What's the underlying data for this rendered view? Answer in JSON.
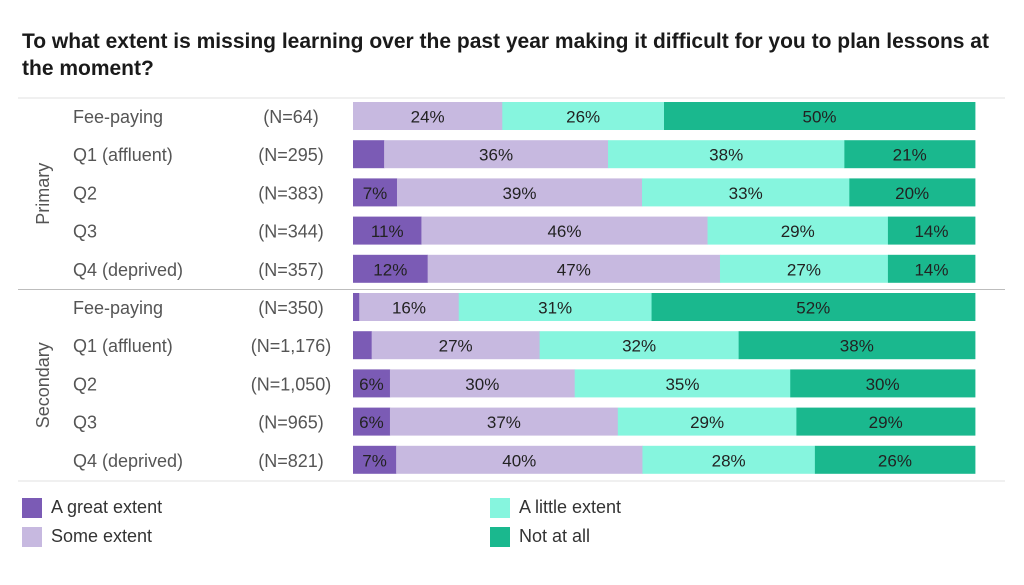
{
  "title": "To what extent is missing learning over the past year making it difficult for you to plan lessons at the moment?",
  "chart_data": {
    "type": "bar",
    "orientation": "horizontal",
    "stacked": true,
    "percent_scale": [
      0,
      100
    ],
    "title": "To what extent is missing learning over the past year making it difficult for you to plan lessons at the moment?",
    "series": [
      {
        "name": "A great extent",
        "color": "#7b5bb5",
        "text_color": "#ffffff"
      },
      {
        "name": "Some extent",
        "color": "#c7b9e0",
        "text_color": "#222222"
      },
      {
        "name": "A little extent",
        "color": "#86f5de",
        "text_color": "#222222"
      },
      {
        "name": "Not at all",
        "color": "#1ab88e",
        "text_color": "#222222"
      }
    ],
    "groups": [
      {
        "name": "Primary",
        "rows": [
          {
            "label": "Fee-paying",
            "n": "(N=64)",
            "values": [
              0,
              24,
              26,
              50
            ],
            "labels": [
              "",
              "24%",
              "26%",
              "50%"
            ]
          },
          {
            "label": "Q1 (affluent)",
            "n": "(N=295)",
            "values": [
              5,
              36,
              38,
              21
            ],
            "labels": [
              "",
              "36%",
              "38%",
              "21%"
            ]
          },
          {
            "label": "Q2",
            "n": "(N=383)",
            "values": [
              7,
              39,
              33,
              20
            ],
            "labels": [
              "7%",
              "39%",
              "33%",
              "20%"
            ]
          },
          {
            "label": "Q3",
            "n": "(N=344)",
            "values": [
              11,
              46,
              29,
              14
            ],
            "labels": [
              "11%",
              "46%",
              "29%",
              "14%"
            ]
          },
          {
            "label": "Q4 (deprived)",
            "n": "(N=357)",
            "values": [
              12,
              47,
              27,
              14
            ],
            "labels": [
              "12%",
              "47%",
              "27%",
              "14%"
            ]
          }
        ]
      },
      {
        "name": "Secondary",
        "rows": [
          {
            "label": "Fee-paying",
            "n": "(N=350)",
            "values": [
              1,
              16,
              31,
              52
            ],
            "labels": [
              "",
              "16%",
              "31%",
              "52%"
            ]
          },
          {
            "label": "Q1 (affluent)",
            "n": "(N=1,176)",
            "values": [
              3,
              27,
              32,
              38
            ],
            "labels": [
              "",
              "27%",
              "32%",
              "38%"
            ]
          },
          {
            "label": "Q2",
            "n": "(N=1,050)",
            "values": [
              6,
              30,
              35,
              30
            ],
            "labels": [
              "6%",
              "30%",
              "35%",
              "30%"
            ]
          },
          {
            "label": "Q3",
            "n": "(N=965)",
            "values": [
              6,
              37,
              29,
              29
            ],
            "labels": [
              "6%",
              "37%",
              "29%",
              "29%"
            ]
          },
          {
            "label": "Q4 (deprived)",
            "n": "(N=821)",
            "values": [
              7,
              40,
              28,
              26
            ],
            "labels": [
              "7%",
              "40%",
              "28%",
              "26%"
            ]
          }
        ]
      }
    ],
    "legend_position": "bottom"
  }
}
